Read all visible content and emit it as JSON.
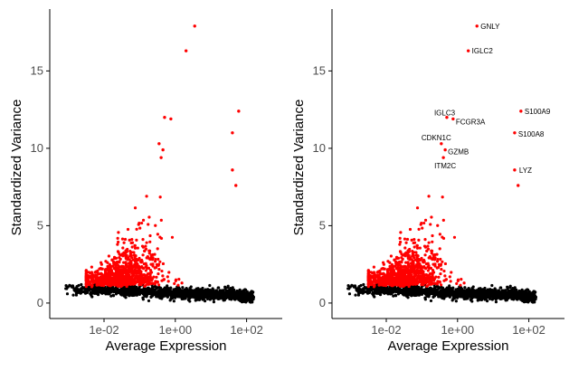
{
  "chart_data": [
    {
      "type": "scatter",
      "panel": "left",
      "title": "",
      "xlabel": "Average Expression",
      "ylabel": "Standardized Variance",
      "xscale": "log10",
      "xlim": [
        0.0003,
        1000
      ],
      "ylim": [
        -1,
        19
      ],
      "xticks": [
        {
          "value": 0.01,
          "label": "1e-02"
        },
        {
          "value": 1,
          "label": "1e+00"
        },
        {
          "value": 100,
          "label": "1e+02"
        }
      ],
      "yticks": [
        {
          "value": 0,
          "label": "0"
        },
        {
          "value": 5,
          "label": "5"
        },
        {
          "value": 10,
          "label": "10"
        },
        {
          "value": 15,
          "label": "15"
        }
      ],
      "series": [
        {
          "name": "non-variable",
          "color": "#000000"
        },
        {
          "name": "variable",
          "color": "#ff0000"
        }
      ],
      "highlighted_points": [
        {
          "x": 3.5,
          "y": 17.9
        },
        {
          "x": 2.0,
          "y": 16.3
        },
        {
          "x": 60,
          "y": 12.4
        },
        {
          "x": 0.5,
          "y": 12.0
        },
        {
          "x": 0.75,
          "y": 11.9
        },
        {
          "x": 40,
          "y": 11.0
        },
        {
          "x": 0.35,
          "y": 10.3
        },
        {
          "x": 0.45,
          "y": 9.9
        },
        {
          "x": 0.4,
          "y": 9.4
        },
        {
          "x": 40,
          "y": 8.6
        },
        {
          "x": 50,
          "y": 7.6
        }
      ],
      "grid": false,
      "legend": "none"
    },
    {
      "type": "scatter",
      "panel": "right",
      "title": "",
      "xlabel": "Average Expression",
      "ylabel": "Standardized Variance",
      "xscale": "log10",
      "xlim": [
        0.0003,
        1000
      ],
      "ylim": [
        -1,
        19
      ],
      "xticks": [
        {
          "value": 0.01,
          "label": "1e-02"
        },
        {
          "value": 1,
          "label": "1e+00"
        },
        {
          "value": 100,
          "label": "1e+02"
        }
      ],
      "yticks": [
        {
          "value": 0,
          "label": "0"
        },
        {
          "value": 5,
          "label": "5"
        },
        {
          "value": 10,
          "label": "10"
        },
        {
          "value": 15,
          "label": "15"
        }
      ],
      "series": [
        {
          "name": "non-variable",
          "color": "#000000"
        },
        {
          "name": "variable",
          "color": "#ff0000"
        }
      ],
      "highlighted_points": [
        {
          "x": 3.5,
          "y": 17.9
        },
        {
          "x": 2.0,
          "y": 16.3
        },
        {
          "x": 60,
          "y": 12.4
        },
        {
          "x": 0.5,
          "y": 12.0
        },
        {
          "x": 0.75,
          "y": 11.9
        },
        {
          "x": 40,
          "y": 11.0
        },
        {
          "x": 0.35,
          "y": 10.3
        },
        {
          "x": 0.45,
          "y": 9.9
        },
        {
          "x": 0.4,
          "y": 9.4
        },
        {
          "x": 40,
          "y": 8.6
        },
        {
          "x": 50,
          "y": 7.6
        }
      ],
      "annotations": [
        {
          "text": "GNLY",
          "x": 3.5,
          "y": 17.9
        },
        {
          "text": "IGLC2",
          "x": 2.0,
          "y": 16.3
        },
        {
          "text": "S100A9",
          "x": 60,
          "y": 12.4
        },
        {
          "text": "IGLC3",
          "x": 0.5,
          "y": 12.0
        },
        {
          "text": "FCGR3A",
          "x": 0.75,
          "y": 11.9
        },
        {
          "text": "S100A8",
          "x": 40,
          "y": 11.0
        },
        {
          "text": "CDKN1C",
          "x": 0.35,
          "y": 10.3
        },
        {
          "text": "GZMB",
          "x": 0.45,
          "y": 9.9
        },
        {
          "text": "ITM2C",
          "x": 0.4,
          "y": 9.4
        },
        {
          "text": "LYZ",
          "x": 40,
          "y": 8.6
        }
      ],
      "grid": false,
      "legend": "none"
    }
  ]
}
